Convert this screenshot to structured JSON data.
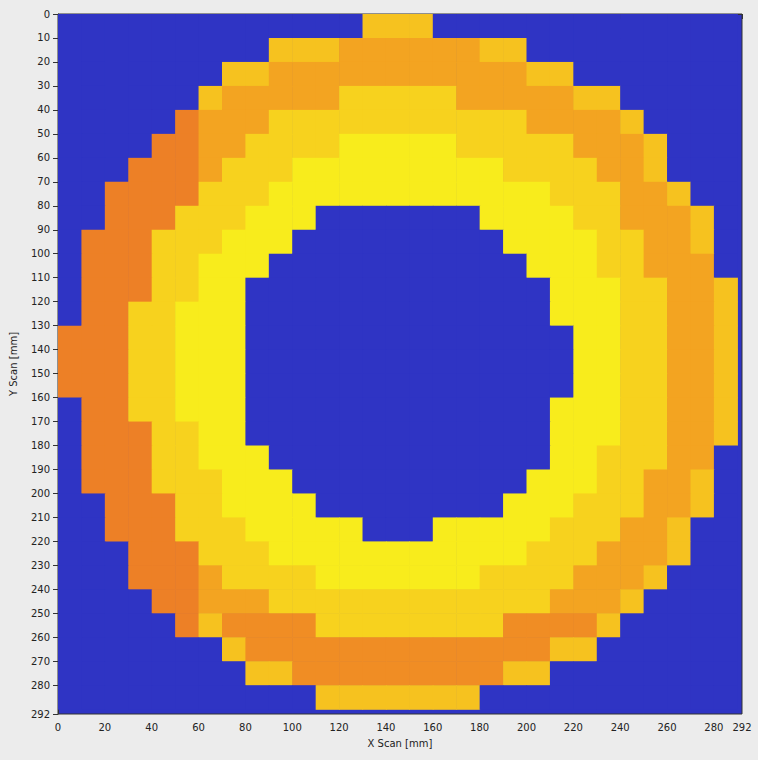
{
  "chart_data": {
    "type": "heatmap",
    "x_label": "X Scan [mm]",
    "y_label": "Y Scan [mm]",
    "xlim": [
      0,
      292
    ],
    "ylim": [
      0,
      292
    ],
    "xticks": [
      0,
      20,
      40,
      60,
      80,
      100,
      120,
      140,
      160,
      180,
      200,
      220,
      240,
      260,
      280,
      292
    ],
    "yticks": [
      0,
      10,
      20,
      30,
      40,
      50,
      60,
      70,
      80,
      90,
      100,
      110,
      120,
      130,
      140,
      150,
      160,
      170,
      180,
      190,
      200,
      210,
      220,
      230,
      240,
      250,
      260,
      270,
      280,
      292
    ],
    "x": [
      5,
      15,
      25,
      35,
      45,
      55,
      65,
      75,
      85,
      95,
      105,
      115,
      125,
      135,
      145,
      155,
      165,
      175,
      185,
      195,
      205,
      215,
      225,
      235,
      245,
      255,
      265,
      275,
      285
    ],
    "y": [
      5,
      15,
      25,
      35,
      45,
      55,
      65,
      75,
      85,
      95,
      105,
      115,
      125,
      135,
      145,
      155,
      165,
      175,
      185,
      195,
      205,
      215,
      225,
      235,
      245,
      255,
      265,
      275,
      285
    ],
    "zlim": [
      0,
      100
    ],
    "z": [
      [
        8,
        8,
        8,
        8,
        8,
        8,
        8,
        8,
        8,
        8,
        8,
        8,
        8,
        74,
        74,
        74,
        8,
        8,
        8,
        8,
        8,
        8,
        8,
        8,
        8,
        8,
        8,
        8,
        8
      ],
      [
        8,
        8,
        8,
        8,
        8,
        8,
        8,
        8,
        8,
        74,
        74,
        74,
        80,
        80,
        80,
        80,
        80,
        80,
        74,
        74,
        8,
        8,
        8,
        8,
        8,
        8,
        8,
        8,
        8
      ],
      [
        8,
        8,
        8,
        8,
        8,
        8,
        8,
        74,
        74,
        80,
        80,
        80,
        80,
        80,
        80,
        80,
        80,
        80,
        80,
        80,
        74,
        74,
        8,
        8,
        8,
        8,
        8,
        8,
        8
      ],
      [
        8,
        8,
        8,
        8,
        8,
        8,
        74,
        80,
        80,
        80,
        80,
        80,
        70,
        70,
        70,
        70,
        70,
        80,
        80,
        80,
        80,
        80,
        74,
        74,
        8,
        8,
        8,
        8,
        8
      ],
      [
        8,
        8,
        8,
        8,
        8,
        86,
        80,
        80,
        80,
        70,
        70,
        70,
        70,
        70,
        70,
        70,
        70,
        70,
        70,
        70,
        80,
        80,
        80,
        80,
        74,
        8,
        8,
        8,
        8
      ],
      [
        8,
        8,
        8,
        8,
        86,
        86,
        80,
        80,
        70,
        70,
        70,
        70,
        62,
        62,
        62,
        62,
        62,
        70,
        70,
        70,
        70,
        70,
        80,
        80,
        80,
        74,
        8,
        8,
        8
      ],
      [
        8,
        8,
        8,
        86,
        86,
        86,
        80,
        70,
        70,
        70,
        62,
        62,
        62,
        62,
        62,
        62,
        62,
        62,
        62,
        70,
        70,
        70,
        70,
        80,
        80,
        74,
        8,
        8,
        8
      ],
      [
        8,
        8,
        86,
        86,
        86,
        86,
        70,
        70,
        70,
        62,
        62,
        62,
        62,
        62,
        62,
        62,
        62,
        62,
        62,
        62,
        62,
        70,
        70,
        70,
        80,
        80,
        74,
        8,
        8
      ],
      [
        8,
        8,
        86,
        86,
        86,
        70,
        70,
        70,
        62,
        62,
        62,
        8,
        8,
        8,
        8,
        8,
        8,
        8,
        62,
        62,
        62,
        62,
        70,
        70,
        80,
        80,
        80,
        74,
        8
      ],
      [
        8,
        86,
        86,
        86,
        70,
        70,
        70,
        62,
        62,
        62,
        8,
        8,
        8,
        8,
        8,
        8,
        8,
        8,
        8,
        62,
        62,
        62,
        62,
        70,
        70,
        80,
        80,
        74,
        8
      ],
      [
        8,
        86,
        86,
        86,
        70,
        70,
        62,
        62,
        62,
        8,
        8,
        8,
        8,
        8,
        8,
        8,
        8,
        8,
        8,
        8,
        62,
        62,
        62,
        70,
        70,
        80,
        80,
        80,
        8
      ],
      [
        8,
        86,
        86,
        86,
        70,
        70,
        62,
        62,
        8,
        8,
        8,
        8,
        8,
        8,
        8,
        8,
        8,
        8,
        8,
        8,
        8,
        62,
        62,
        62,
        70,
        70,
        80,
        80,
        74
      ],
      [
        8,
        86,
        86,
        70,
        70,
        62,
        62,
        62,
        8,
        8,
        8,
        8,
        8,
        8,
        8,
        8,
        8,
        8,
        8,
        8,
        8,
        62,
        62,
        62,
        70,
        70,
        80,
        80,
        74
      ],
      [
        86,
        86,
        86,
        70,
        70,
        62,
        62,
        62,
        8,
        8,
        8,
        8,
        8,
        8,
        8,
        8,
        8,
        8,
        8,
        8,
        8,
        8,
        62,
        62,
        70,
        70,
        80,
        80,
        74
      ],
      [
        86,
        86,
        86,
        70,
        70,
        62,
        62,
        62,
        8,
        8,
        8,
        8,
        8,
        8,
        8,
        8,
        8,
        8,
        8,
        8,
        8,
        8,
        62,
        62,
        70,
        70,
        80,
        80,
        74
      ],
      [
        86,
        86,
        86,
        70,
        70,
        62,
        62,
        62,
        8,
        8,
        8,
        8,
        8,
        8,
        8,
        8,
        8,
        8,
        8,
        8,
        8,
        8,
        62,
        62,
        70,
        70,
        80,
        80,
        74
      ],
      [
        8,
        86,
        86,
        70,
        70,
        62,
        62,
        62,
        8,
        8,
        8,
        8,
        8,
        8,
        8,
        8,
        8,
        8,
        8,
        8,
        8,
        62,
        62,
        62,
        70,
        70,
        80,
        80,
        74
      ],
      [
        8,
        86,
        86,
        86,
        70,
        70,
        62,
        62,
        8,
        8,
        8,
        8,
        8,
        8,
        8,
        8,
        8,
        8,
        8,
        8,
        8,
        62,
        62,
        62,
        70,
        70,
        80,
        80,
        74
      ],
      [
        8,
        86,
        86,
        86,
        70,
        70,
        62,
        62,
        62,
        8,
        8,
        8,
        8,
        8,
        8,
        8,
        8,
        8,
        8,
        8,
        8,
        62,
        62,
        70,
        70,
        70,
        80,
        80,
        8
      ],
      [
        8,
        86,
        86,
        86,
        70,
        70,
        70,
        62,
        62,
        62,
        8,
        8,
        8,
        8,
        8,
        8,
        8,
        8,
        8,
        8,
        62,
        62,
        62,
        70,
        70,
        80,
        80,
        74,
        8
      ],
      [
        8,
        8,
        86,
        86,
        86,
        70,
        70,
        62,
        62,
        62,
        62,
        8,
        8,
        8,
        8,
        8,
        8,
        8,
        8,
        62,
        62,
        62,
        70,
        70,
        70,
        80,
        80,
        74,
        8
      ],
      [
        8,
        8,
        86,
        86,
        86,
        70,
        70,
        70,
        62,
        62,
        62,
        62,
        62,
        8,
        8,
        8,
        62,
        62,
        62,
        62,
        62,
        70,
        70,
        70,
        80,
        80,
        74,
        8,
        8
      ],
      [
        8,
        8,
        8,
        86,
        86,
        86,
        70,
        70,
        70,
        62,
        62,
        62,
        62,
        62,
        62,
        62,
        62,
        62,
        62,
        62,
        70,
        70,
        70,
        80,
        80,
        80,
        74,
        8,
        8
      ],
      [
        8,
        8,
        8,
        86,
        86,
        86,
        80,
        70,
        70,
        70,
        70,
        62,
        62,
        62,
        62,
        62,
        62,
        62,
        70,
        70,
        70,
        70,
        80,
        80,
        80,
        74,
        8,
        8,
        8
      ],
      [
        8,
        8,
        8,
        8,
        86,
        86,
        80,
        80,
        80,
        70,
        70,
        70,
        70,
        70,
        70,
        70,
        70,
        70,
        70,
        70,
        70,
        80,
        80,
        80,
        74,
        8,
        8,
        8,
        8
      ],
      [
        8,
        8,
        8,
        8,
        8,
        86,
        74,
        84,
        84,
        84,
        84,
        70,
        70,
        70,
        70,
        70,
        70,
        70,
        70,
        84,
        84,
        84,
        84,
        74,
        8,
        8,
        8,
        8,
        8
      ],
      [
        8,
        8,
        8,
        8,
        8,
        8,
        8,
        74,
        84,
        84,
        84,
        84,
        84,
        84,
        84,
        84,
        84,
        84,
        84,
        84,
        84,
        74,
        74,
        8,
        8,
        8,
        8,
        8,
        8
      ],
      [
        8,
        8,
        8,
        8,
        8,
        8,
        8,
        8,
        74,
        74,
        84,
        84,
        84,
        84,
        84,
        84,
        84,
        84,
        84,
        74,
        74,
        8,
        8,
        8,
        8,
        8,
        8,
        8,
        8
      ],
      [
        8,
        8,
        8,
        8,
        8,
        8,
        8,
        8,
        8,
        8,
        8,
        74,
        74,
        74,
        74,
        74,
        74,
        74,
        8,
        8,
        8,
        8,
        8,
        8,
        8,
        8,
        8,
        8,
        8
      ]
    ]
  }
}
